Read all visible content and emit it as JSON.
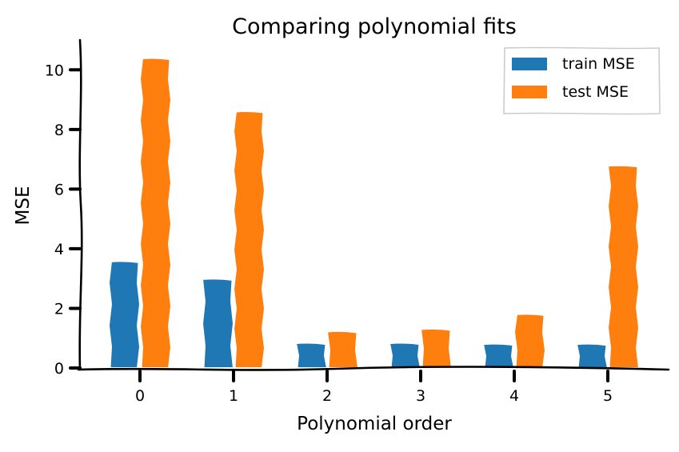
{
  "chart_data": {
    "type": "bar",
    "title": "Comparing polynomial fits",
    "xlabel": "Polynomial order",
    "ylabel": "MSE",
    "categories": [
      "0",
      "1",
      "2",
      "3",
      "4",
      "5"
    ],
    "series": [
      {
        "name": "train MSE",
        "color": "#1f77b4",
        "values": [
          3.57,
          2.98,
          0.83,
          0.83,
          0.8,
          0.8
        ]
      },
      {
        "name": "test MSE",
        "color": "#ff7f0e",
        "values": [
          10.38,
          8.6,
          1.22,
          1.3,
          1.8,
          6.78
        ]
      }
    ],
    "yticks": [
      "0",
      "2",
      "4",
      "6",
      "8",
      "10"
    ],
    "ylim": [
      0,
      11
    ],
    "grid": false,
    "legend_position": "top-right"
  }
}
